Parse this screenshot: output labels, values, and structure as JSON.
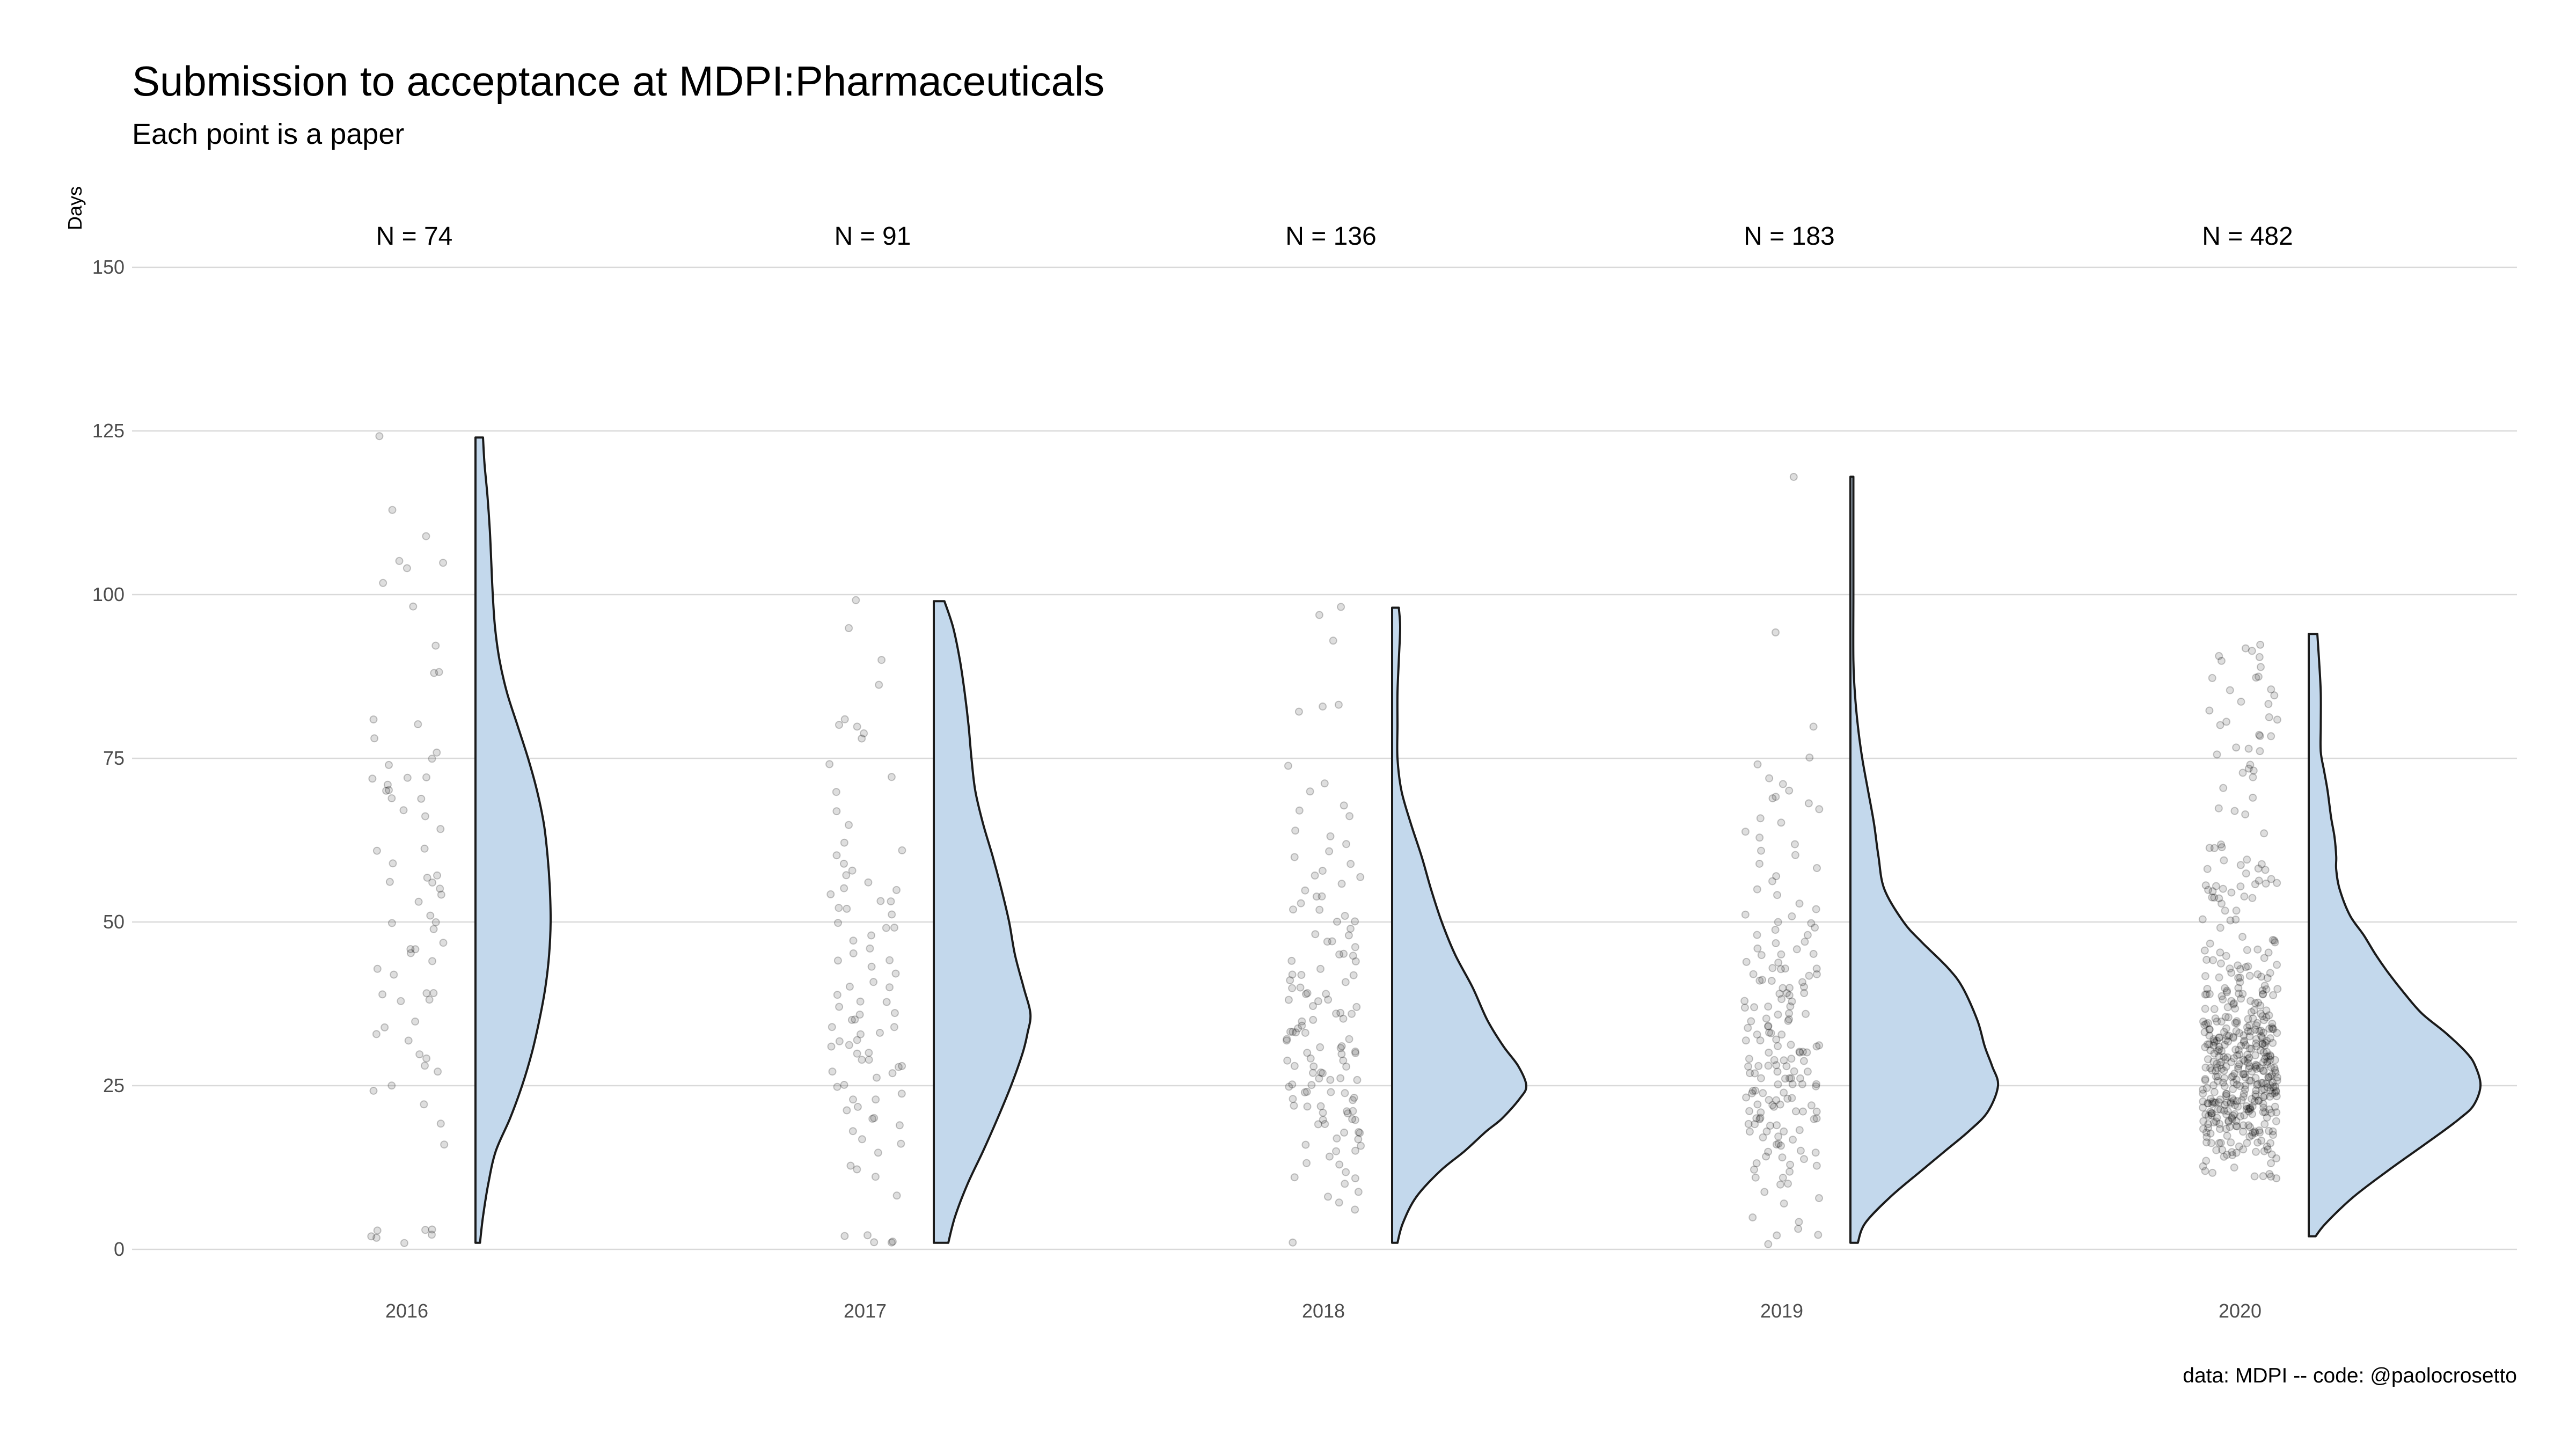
{
  "chart_data": {
    "type": "raincloud",
    "title": "Submission to acceptance at MDPI:Pharmaceuticals",
    "subtitle": "Each point is a paper",
    "ylabel": "Days",
    "xlabel": "",
    "ylim": [
      0,
      150
    ],
    "yticks": [
      0,
      25,
      50,
      75,
      100,
      125,
      150
    ],
    "caption": "data: MDPI -- code: @paolocrosetto",
    "grid": true,
    "colors": {
      "violin_fill": "#c3d8ec",
      "violin_stroke": "#1a1a1a",
      "points": "#000000",
      "grid": "#d9d9d9"
    },
    "groups": [
      {
        "year": "2016",
        "n": 74,
        "n_label": "N = 74",
        "range": [
          1,
          124
        ],
        "density": [
          [
            1,
            0.06
          ],
          [
            5,
            0.1
          ],
          [
            10,
            0.17
          ],
          [
            15,
            0.27
          ],
          [
            20,
            0.46
          ],
          [
            25,
            0.62
          ],
          [
            30,
            0.75
          ],
          [
            35,
            0.85
          ],
          [
            40,
            0.93
          ],
          [
            45,
            0.98
          ],
          [
            50,
            1.0
          ],
          [
            55,
            0.99
          ],
          [
            60,
            0.96
          ],
          [
            65,
            0.91
          ],
          [
            70,
            0.82
          ],
          [
            75,
            0.7
          ],
          [
            80,
            0.56
          ],
          [
            85,
            0.42
          ],
          [
            90,
            0.32
          ],
          [
            95,
            0.26
          ],
          [
            100,
            0.23
          ],
          [
            105,
            0.21
          ],
          [
            110,
            0.19
          ],
          [
            115,
            0.16
          ],
          [
            120,
            0.12
          ],
          [
            124,
            0.1
          ]
        ],
        "points": [
          124,
          113,
          109,
          105,
          105,
          104,
          102,
          92,
          88,
          88,
          80,
          78,
          76,
          75,
          74,
          72,
          72,
          72,
          71,
          70,
          70,
          69,
          69,
          67,
          66,
          64,
          61,
          61,
          59,
          57,
          57,
          56,
          56,
          55,
          54,
          53,
          51,
          50,
          50,
          49,
          47,
          46,
          46,
          45,
          44,
          43,
          42,
          39,
          39,
          39,
          38,
          38,
          35,
          34,
          33,
          32,
          30,
          29,
          28,
          27,
          25,
          24,
          22,
          19,
          16,
          3,
          3,
          3,
          2,
          2,
          2,
          1,
          98,
          81
        ]
      },
      {
        "year": "2017",
        "n": 91,
        "n_label": "N = 91",
        "range": [
          1,
          99
        ],
        "density": [
          [
            1,
            0.15
          ],
          [
            5,
            0.22
          ],
          [
            10,
            0.35
          ],
          [
            15,
            0.51
          ],
          [
            20,
            0.66
          ],
          [
            25,
            0.8
          ],
          [
            30,
            0.92
          ],
          [
            33,
            0.97
          ],
          [
            36,
            1.0
          ],
          [
            40,
            0.93
          ],
          [
            45,
            0.84
          ],
          [
            50,
            0.78
          ],
          [
            55,
            0.7
          ],
          [
            60,
            0.61
          ],
          [
            65,
            0.51
          ],
          [
            70,
            0.43
          ],
          [
            75,
            0.39
          ],
          [
            80,
            0.36
          ],
          [
            85,
            0.32
          ],
          [
            90,
            0.27
          ],
          [
            95,
            0.2
          ],
          [
            99,
            0.11
          ]
        ],
        "points": [
          99,
          95,
          90,
          86,
          81,
          80,
          80,
          79,
          78,
          74,
          72,
          70,
          67,
          65,
          62,
          61,
          60,
          59,
          58,
          57,
          56,
          55,
          55,
          54,
          53,
          53,
          52,
          52,
          51,
          50,
          49,
          49,
          48,
          47,
          46,
          45,
          44,
          44,
          43,
          42,
          41,
          40,
          40,
          39,
          38,
          38,
          37,
          36,
          35,
          35,
          34,
          34,
          33,
          33,
          32,
          32,
          31,
          31,
          30,
          30,
          29,
          29,
          28,
          28,
          27,
          27,
          26,
          25,
          25,
          24,
          23,
          23,
          22,
          21,
          20,
          20,
          19,
          18,
          17,
          16,
          15,
          13,
          12,
          11,
          8,
          2,
          2,
          1,
          1,
          1,
          36
        ]
      },
      {
        "year": "2018",
        "n": 136,
        "n_label": "N = 136",
        "range": [
          1,
          98
        ],
        "density": [
          [
            1,
            0.04
          ],
          [
            4,
            0.08
          ],
          [
            8,
            0.18
          ],
          [
            12,
            0.36
          ],
          [
            15,
            0.54
          ],
          [
            18,
            0.7
          ],
          [
            20,
            0.82
          ],
          [
            23,
            0.95
          ],
          [
            25,
            1.0
          ],
          [
            28,
            0.94
          ],
          [
            31,
            0.83
          ],
          [
            35,
            0.71
          ],
          [
            40,
            0.6
          ],
          [
            45,
            0.47
          ],
          [
            50,
            0.37
          ],
          [
            55,
            0.29
          ],
          [
            60,
            0.22
          ],
          [
            65,
            0.14
          ],
          [
            70,
            0.07
          ],
          [
            75,
            0.04
          ],
          [
            80,
            0.04
          ],
          [
            85,
            0.04
          ],
          [
            90,
            0.05
          ],
          [
            95,
            0.06
          ],
          [
            98,
            0.05
          ]
        ],
        "points": [
          98,
          97,
          93,
          83,
          83,
          82,
          74,
          71,
          70,
          68,
          67,
          66,
          64,
          63,
          62,
          61,
          60,
          59,
          58,
          57,
          57,
          56,
          55,
          54,
          54,
          53,
          52,
          52,
          51,
          50,
          50,
          49,
          48,
          47,
          47,
          46,
          45,
          45,
          44,
          44,
          43,
          42,
          42,
          41,
          41,
          40,
          40,
          39,
          39,
          38,
          38,
          38,
          37,
          37,
          36,
          36,
          35,
          35,
          35,
          34,
          34,
          33,
          33,
          33,
          32,
          32,
          31,
          31,
          31,
          30,
          30,
          30,
          29,
          29,
          28,
          28,
          28,
          27,
          27,
          26,
          26,
          26,
          25,
          25,
          25,
          24,
          24,
          24,
          23,
          23,
          23,
          22,
          22,
          22,
          21,
          21,
          21,
          20,
          20,
          20,
          19,
          19,
          18,
          18,
          18,
          17,
          17,
          16,
          16,
          15,
          15,
          14,
          13,
          13,
          12,
          11,
          11,
          10,
          9,
          8,
          7,
          6,
          1,
          24,
          27,
          30,
          33,
          36,
          39,
          42,
          45,
          48,
          21,
          26,
          29,
          32
        ]
      },
      {
        "year": "2019",
        "n": 183,
        "n_label": "N = 183",
        "range": [
          1,
          118
        ],
        "density": [
          [
            1,
            0.05
          ],
          [
            4,
            0.1
          ],
          [
            8,
            0.27
          ],
          [
            12,
            0.48
          ],
          [
            15,
            0.64
          ],
          [
            18,
            0.8
          ],
          [
            21,
            0.93
          ],
          [
            25,
            1.0
          ],
          [
            28,
            0.96
          ],
          [
            31,
            0.91
          ],
          [
            35,
            0.86
          ],
          [
            40,
            0.76
          ],
          [
            43,
            0.66
          ],
          [
            47,
            0.48
          ],
          [
            50,
            0.36
          ],
          [
            55,
            0.23
          ],
          [
            60,
            0.19
          ],
          [
            65,
            0.16
          ],
          [
            70,
            0.12
          ],
          [
            75,
            0.08
          ],
          [
            80,
            0.05
          ],
          [
            85,
            0.03
          ],
          [
            90,
            0.02
          ],
          [
            100,
            0.02
          ],
          [
            110,
            0.02
          ],
          [
            118,
            0.02
          ]
        ],
        "points": [
          118,
          94,
          80,
          75,
          74,
          72,
          71,
          70,
          69,
          69,
          68,
          67,
          66,
          65,
          64,
          63,
          62,
          61,
          60,
          59,
          58,
          57,
          56,
          55,
          54,
          53,
          52,
          51,
          51,
          50,
          50,
          49,
          49,
          48,
          48,
          47,
          47,
          46,
          46,
          45,
          45,
          44,
          44,
          43,
          43,
          43,
          42,
          42,
          42,
          41,
          41,
          41,
          40,
          40,
          40,
          39,
          39,
          39,
          38,
          38,
          38,
          37,
          37,
          37,
          36,
          36,
          36,
          35,
          35,
          35,
          34,
          34,
          34,
          33,
          33,
          33,
          32,
          32,
          32,
          31,
          31,
          31,
          30,
          30,
          30,
          30,
          29,
          29,
          29,
          29,
          28,
          28,
          28,
          28,
          27,
          27,
          27,
          27,
          26,
          26,
          26,
          26,
          25,
          25,
          25,
          25,
          24,
          24,
          24,
          24,
          23,
          23,
          23,
          23,
          22,
          22,
          22,
          22,
          21,
          21,
          21,
          21,
          20,
          20,
          20,
          20,
          19,
          19,
          19,
          18,
          18,
          18,
          17,
          17,
          17,
          16,
          16,
          16,
          15,
          15,
          15,
          14,
          14,
          14,
          13,
          13,
          13,
          12,
          12,
          11,
          11,
          10,
          10,
          9,
          8,
          7,
          5,
          4,
          3,
          2,
          2,
          1,
          26,
          27,
          28,
          29,
          31,
          33,
          35,
          37,
          39,
          41,
          43,
          45,
          24,
          23,
          22,
          21,
          20,
          19,
          18,
          25,
          30
        ]
      },
      {
        "year": "2020",
        "n": 482,
        "n_label": "N = 482",
        "range": [
          2,
          94
        ],
        "density": [
          [
            2,
            0.04
          ],
          [
            4,
            0.1
          ],
          [
            8,
            0.26
          ],
          [
            12,
            0.46
          ],
          [
            15,
            0.62
          ],
          [
            18,
            0.78
          ],
          [
            20,
            0.88
          ],
          [
            22,
            0.96
          ],
          [
            25,
            1.0
          ],
          [
            28,
            0.97
          ],
          [
            30,
            0.92
          ],
          [
            33,
            0.8
          ],
          [
            36,
            0.66
          ],
          [
            39,
            0.56
          ],
          [
            42,
            0.47
          ],
          [
            45,
            0.39
          ],
          [
            48,
            0.32
          ],
          [
            51,
            0.24
          ],
          [
            55,
            0.18
          ],
          [
            58,
            0.16
          ],
          [
            60,
            0.16
          ],
          [
            63,
            0.15
          ],
          [
            66,
            0.13
          ],
          [
            70,
            0.11
          ],
          [
            73,
            0.09
          ],
          [
            76,
            0.07
          ],
          [
            80,
            0.07
          ],
          [
            85,
            0.07
          ],
          [
            90,
            0.06
          ],
          [
            94,
            0.05
          ]
        ]
      }
    ]
  }
}
